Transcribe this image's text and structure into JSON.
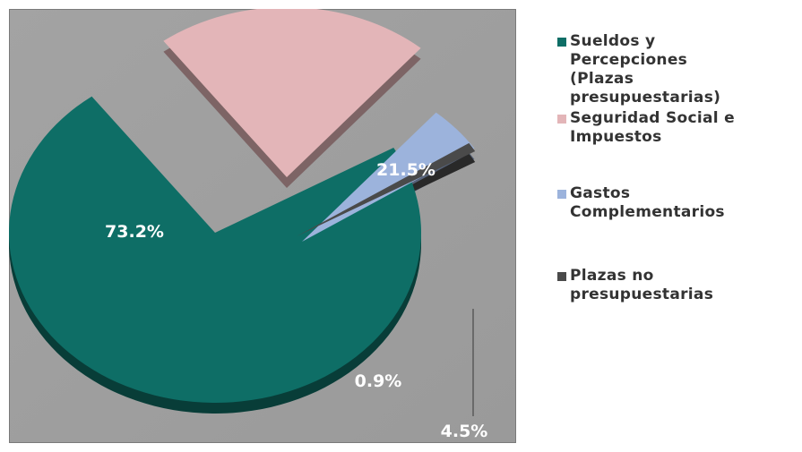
{
  "chart_data": {
    "type": "pie",
    "title": "",
    "slices": [
      {
        "label": "Sueldos y Percepciones (Plazas presupuestarias)",
        "value": 73.2,
        "display": "73.2%",
        "color": "#0e6e66"
      },
      {
        "label": "Seguridad Social e Impuestos",
        "value": 21.5,
        "display": "21.5%",
        "color": "#e3b5b8"
      },
      {
        "label": "Gastos Complementarios",
        "value": 4.5,
        "display": "4.5%",
        "color": "#9cb3dc"
      },
      {
        "label": "Plazas no presupuestarias",
        "value": 0.9,
        "display": "0.9%",
        "color": "#4a4a4a"
      }
    ],
    "legend": {
      "position": "right",
      "lines": [
        [
          "Sueldos y",
          "Percepciones",
          "(Plazas",
          "presupuestarias)"
        ],
        [
          "Seguridad Social e",
          "Impuestos"
        ],
        [
          "Gastos",
          "Complementarios"
        ],
        [
          "Plazas no",
          "presupuestarias"
        ]
      ]
    }
  }
}
